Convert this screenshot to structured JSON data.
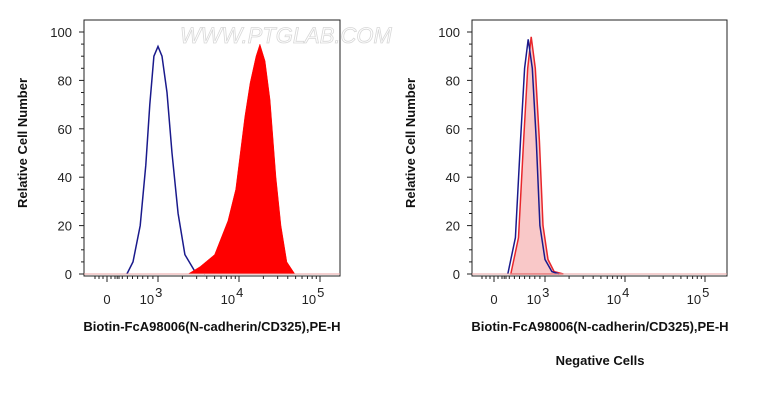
{
  "watermark": "WWW.PTGLAB.COM",
  "chart_data": [
    {
      "type": "area",
      "title": "",
      "xlabel": "Biotin-FcA98006(N-cadherin/CD325),PE-H",
      "ylabel": "Relative Cell Number",
      "caption": "",
      "xscale": "biexponential",
      "ylim": [
        0,
        100
      ],
      "yticks": [
        "0",
        "20",
        "40",
        "60",
        "80",
        "100"
      ],
      "xticks": [
        {
          "base": "0",
          "exp": ""
        },
        {
          "base": "10",
          "exp": "3"
        },
        {
          "base": "10",
          "exp": "4"
        },
        {
          "base": "10",
          "exp": "5"
        }
      ],
      "grid": false,
      "series": [
        {
          "style": "line",
          "color": "#1a1a8c",
          "x": [
            390,
            510,
            650,
            760,
            840,
            920,
            1000,
            1120,
            1290,
            1490,
            1770,
            2150,
            2860,
            3800
          ],
          "y": [
            0,
            5,
            20,
            45,
            70,
            90,
            94,
            90,
            75,
            50,
            25,
            8,
            1,
            0
          ]
        },
        {
          "style": "filled",
          "color": "#ff0000",
          "x": [
            2350,
            3300,
            5000,
            7300,
            9100,
            11800,
            13700,
            16200,
            18100,
            21000,
            24200,
            28600,
            33000,
            39000,
            49000
          ],
          "y": [
            0,
            3,
            8,
            22,
            35,
            65,
            79,
            90,
            95,
            88,
            72,
            40,
            20,
            5,
            0
          ]
        }
      ]
    },
    {
      "type": "area",
      "title": "",
      "xlabel": "Biotin-FcA98006(N-cadherin/CD325),PE-H",
      "ylabel": "Relative Cell Number",
      "caption": "Negative Cells",
      "xscale": "biexponential",
      "ylim": [
        0,
        100
      ],
      "yticks": [
        "0",
        "20",
        "40",
        "60",
        "80",
        "100"
      ],
      "xticks": [
        {
          "base": "0",
          "exp": ""
        },
        {
          "base": "10",
          "exp": "3"
        },
        {
          "base": "10",
          "exp": "4"
        },
        {
          "base": "10",
          "exp": "5"
        }
      ],
      "grid": false,
      "series": [
        {
          "style": "filled",
          "color": "#e8262b",
          "fill": "#f9c8c8",
          "x": [
            330,
            480,
            580,
            660,
            730,
            810,
            890,
            960,
            1090,
            1300,
            1700
          ],
          "y": [
            0,
            15,
            55,
            85,
            98,
            85,
            55,
            20,
            6,
            1,
            0
          ]
        },
        {
          "style": "line",
          "color": "#1a1a8c",
          "x": [
            270,
            420,
            520,
            600,
            670,
            750,
            830,
            900,
            1000,
            1220,
            1500
          ],
          "y": [
            0,
            15,
            55,
            85,
            97,
            85,
            55,
            20,
            6,
            1,
            0
          ]
        }
      ]
    }
  ]
}
